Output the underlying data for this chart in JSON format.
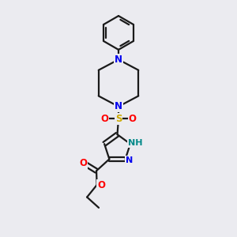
{
  "background_color": "#ebebf0",
  "bond_color": "#1a1a1a",
  "bond_width": 1.6,
  "atom_colors": {
    "N": "#0000ee",
    "O": "#ff0000",
    "S": "#ccaa00",
    "NH": "#008888",
    "C": "#1a1a1a"
  },
  "font_size_atom": 8.5,
  "font_size_nh": 8.0
}
